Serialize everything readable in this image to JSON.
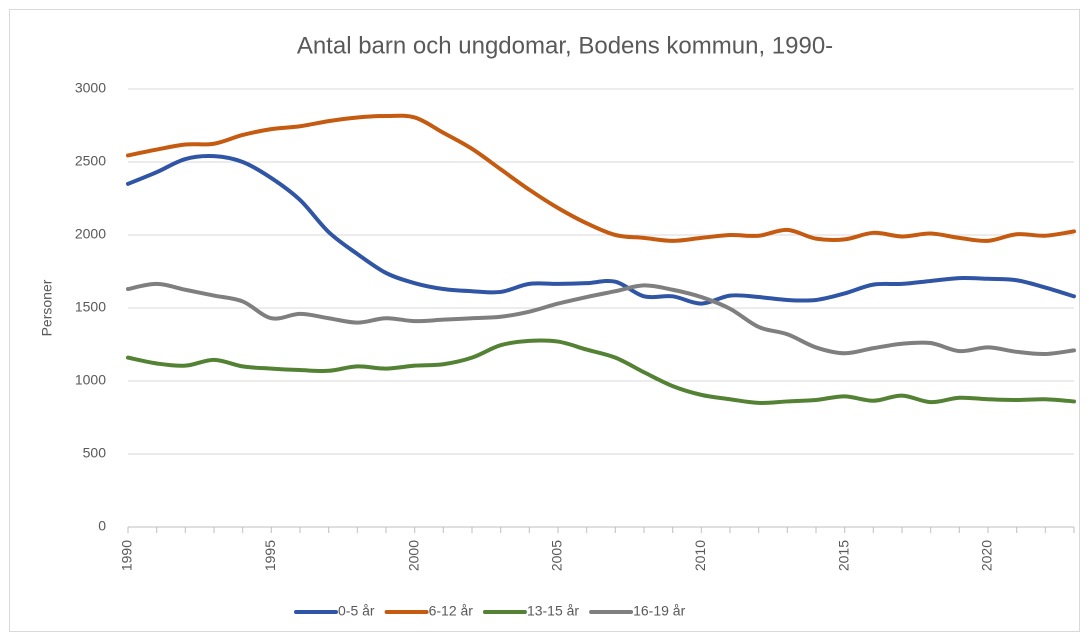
{
  "chart_data": {
    "type": "line",
    "title": "Antal barn och ungdomar, Bodens kommun, 1990-",
    "y_label": "Personer",
    "x": [
      1990,
      1991,
      1992,
      1993,
      1994,
      1995,
      1996,
      1997,
      1998,
      1999,
      2000,
      2001,
      2002,
      2003,
      2004,
      2005,
      2006,
      2007,
      2008,
      2009,
      2010,
      2011,
      2012,
      2013,
      2014,
      2015,
      2016,
      2017,
      2018,
      2019,
      2020,
      2021,
      2022,
      2023
    ],
    "xlim": [
      1990,
      2023
    ],
    "xticks": [
      1990,
      1995,
      2000,
      2005,
      2010,
      2015,
      2020
    ],
    "ylim": [
      0,
      3000
    ],
    "yticks": [
      0,
      500,
      1000,
      1500,
      2000,
      2500,
      3000
    ],
    "grid": true,
    "legend": "bottom",
    "series": [
      {
        "name": "0-5 år",
        "color": "#2f55a4",
        "values": [
          2350,
          2430,
          2520,
          2540,
          2500,
          2390,
          2240,
          2020,
          1870,
          1740,
          1670,
          1630,
          1615,
          1610,
          1665,
          1665,
          1670,
          1680,
          1580,
          1580,
          1530,
          1585,
          1575,
          1555,
          1555,
          1600,
          1660,
          1665,
          1685,
          1705,
          1700,
          1690,
          1640,
          1580
        ]
      },
      {
        "name": "6-12 år",
        "color": "#c55a11",
        "values": [
          2545,
          2585,
          2620,
          2625,
          2685,
          2725,
          2745,
          2780,
          2805,
          2815,
          2805,
          2700,
          2590,
          2450,
          2310,
          2185,
          2080,
          2000,
          1980,
          1960,
          1980,
          2000,
          1995,
          2035,
          1975,
          1970,
          2015,
          1990,
          2010,
          1980,
          1960,
          2005,
          1995,
          2025
        ]
      },
      {
        "name": "13-15 år",
        "color": "#548235",
        "values": [
          1160,
          1120,
          1105,
          1145,
          1100,
          1085,
          1075,
          1070,
          1100,
          1085,
          1105,
          1115,
          1160,
          1245,
          1275,
          1270,
          1215,
          1160,
          1060,
          965,
          905,
          875,
          850,
          860,
          870,
          895,
          865,
          900,
          855,
          885,
          875,
          870,
          875,
          860
        ]
      },
      {
        "name": "16-19 år",
        "color": "#7f7f7f",
        "values": [
          1630,
          1665,
          1625,
          1585,
          1545,
          1430,
          1460,
          1430,
          1400,
          1430,
          1410,
          1420,
          1430,
          1440,
          1475,
          1530,
          1575,
          1615,
          1655,
          1625,
          1575,
          1495,
          1370,
          1320,
          1230,
          1190,
          1225,
          1255,
          1260,
          1205,
          1230,
          1200,
          1185,
          1210
        ]
      }
    ]
  }
}
